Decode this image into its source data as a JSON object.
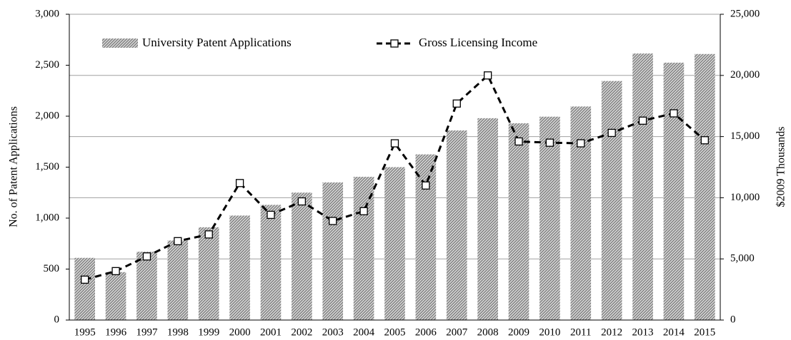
{
  "chart_data": {
    "type": "bar-line",
    "categories": [
      "1995",
      "1996",
      "1997",
      "1998",
      "1999",
      "2000",
      "2001",
      "2002",
      "2003",
      "2004",
      "2005",
      "2006",
      "2007",
      "2008",
      "2009",
      "2010",
      "2011",
      "2012",
      "2013",
      "2014",
      "2015"
    ],
    "series": [
      {
        "name": "University Patent Applications",
        "type": "bar",
        "color": "#9a9a9a",
        "values": [
          610,
          470,
          670,
          780,
          910,
          1025,
          1130,
          1250,
          1350,
          1405,
          1500,
          1625,
          1860,
          1980,
          1930,
          1995,
          2095,
          2345,
          2615,
          2525,
          2610
        ]
      },
      {
        "name": "Gross Licensing Income",
        "type": "line",
        "axis": "y2",
        "color": "#000000",
        "values": [
          3300,
          4000,
          5200,
          6450,
          7000,
          11200,
          8600,
          9700,
          8100,
          8900,
          14450,
          11000,
          17700,
          20000,
          14600,
          14500,
          14450,
          15300,
          16300,
          16900,
          14700
        ]
      }
    ],
    "ylabel": "No. of Patent Applications",
    "y2label": "$2009 Thousands",
    "ylim": [
      0,
      3000
    ],
    "yticks": [
      0,
      500,
      {
        "value": 1000,
        "label": "1,000"
      },
      {
        "value": 1500,
        "label": "1,500"
      },
      {
        "value": 2000,
        "label": "2,000"
      },
      {
        "value": 2500,
        "label": "2,500"
      },
      {
        "value": 3000,
        "label": "3,000"
      }
    ],
    "y2lim": [
      0,
      25000
    ],
    "y2ticks": [
      0,
      {
        "value": 5000,
        "label": "5,000"
      },
      {
        "value": 10000,
        "label": "10,000"
      },
      {
        "value": 15000,
        "label": "15,000"
      },
      {
        "value": 20000,
        "label": "20,000"
      },
      {
        "value": 25000,
        "label": "25,000"
      }
    ],
    "grid": true,
    "legend": "top"
  }
}
